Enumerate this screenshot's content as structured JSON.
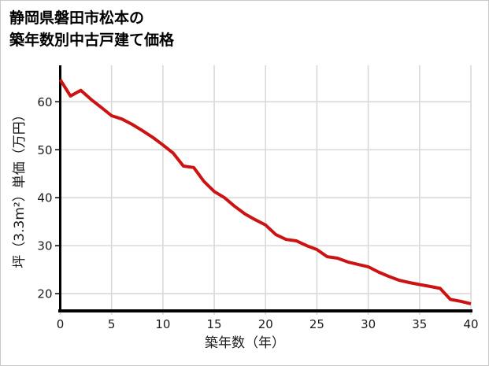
{
  "page": {
    "title_line1": "静岡県磐田市松本の",
    "title_line2": "築年数別中古戸建て価格"
  },
  "chart_data": {
    "type": "line",
    "title": "静岡県磐田市松本の築年数別中古戸建て価格",
    "xlabel": "築年数（年）",
    "ylabel": "坪（3.3m²）単価（万円）",
    "x": [
      0,
      1,
      2,
      3,
      4,
      5,
      6,
      7,
      8,
      9,
      10,
      11,
      12,
      13,
      14,
      15,
      16,
      17,
      18,
      19,
      20,
      21,
      22,
      23,
      24,
      25,
      26,
      27,
      28,
      29,
      30,
      31,
      32,
      33,
      34,
      35,
      36,
      37,
      38,
      39,
      40
    ],
    "values": [
      64.6,
      61.2,
      62.4,
      60.5,
      58.8,
      57.1,
      56.4,
      55.3,
      54.0,
      52.6,
      51.0,
      49.3,
      46.6,
      46.3,
      43.4,
      41.3,
      40.0,
      38.2,
      36.6,
      35.4,
      34.3,
      32.3,
      31.3,
      31.0,
      30.0,
      29.2,
      27.7,
      27.4,
      26.6,
      26.1,
      25.6,
      24.5,
      23.6,
      22.8,
      22.3,
      21.9,
      21.5,
      21.1,
      18.8,
      18.4,
      17.9
    ],
    "x_ticks": [
      0,
      5,
      10,
      15,
      20,
      25,
      30,
      35,
      40
    ],
    "y_ticks": [
      20,
      30,
      40,
      50,
      60
    ],
    "xlim": [
      0,
      40
    ],
    "ylim": [
      16.4,
      67.6
    ],
    "grid": true,
    "legend": false,
    "line_color": "#cc1212",
    "grid_color": "#d9d9d9",
    "axis_color": "#000000",
    "label_color": "#1a1a1a"
  }
}
